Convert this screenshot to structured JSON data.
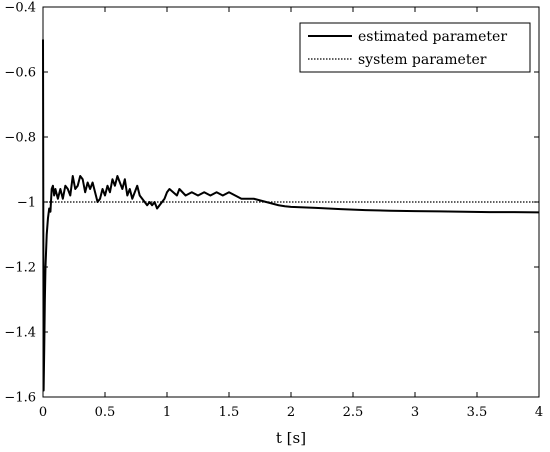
{
  "chart_data": {
    "type": "line",
    "title": "",
    "xlabel": "t [s]",
    "ylabel": "",
    "xlim": [
      0,
      4
    ],
    "ylim": [
      -1.6,
      -0.4
    ],
    "grid": false,
    "legend_position": "top-right",
    "x_ticks": [
      0,
      0.5,
      1,
      1.5,
      2,
      2.5,
      3,
      3.5,
      4
    ],
    "x_tick_labels": [
      "0",
      "0.5",
      "1",
      "1.5",
      "2",
      "2.5",
      "3",
      "3.5",
      "4"
    ],
    "y_ticks": [
      -1.6,
      -1.4,
      -1.2,
      -1,
      -0.8,
      -0.6,
      -0.4
    ],
    "y_tick_labels": [
      "−1.6",
      "−1.4",
      "−1.2",
      "−1",
      "−0.8",
      "−0.6",
      "−0.4"
    ],
    "series": [
      {
        "name": "estimated parameter",
        "style": "solid",
        "color": "#000000",
        "x": [
          0,
          0.005,
          0.01,
          0.015,
          0.02,
          0.025,
          0.03,
          0.04,
          0.05,
          0.06,
          0.07,
          0.08,
          0.09,
          0.1,
          0.12,
          0.14,
          0.16,
          0.18,
          0.2,
          0.22,
          0.24,
          0.26,
          0.28,
          0.3,
          0.32,
          0.34,
          0.36,
          0.38,
          0.4,
          0.42,
          0.44,
          0.46,
          0.48,
          0.5,
          0.52,
          0.54,
          0.56,
          0.58,
          0.6,
          0.62,
          0.64,
          0.66,
          0.68,
          0.7,
          0.72,
          0.74,
          0.76,
          0.78,
          0.8,
          0.82,
          0.84,
          0.86,
          0.88,
          0.9,
          0.92,
          0.94,
          0.96,
          0.98,
          1.0,
          1.02,
          1.05,
          1.08,
          1.1,
          1.15,
          1.2,
          1.25,
          1.3,
          1.35,
          1.4,
          1.45,
          1.5,
          1.55,
          1.6,
          1.65,
          1.7,
          1.75,
          1.8,
          1.85,
          1.9,
          1.95,
          2.0,
          2.2,
          2.4,
          2.6,
          2.8,
          3.0,
          3.2,
          3.4,
          3.6,
          3.8,
          4.0
        ],
        "y": [
          -0.5,
          -1.58,
          -1.45,
          -1.3,
          -1.2,
          -1.15,
          -1.1,
          -1.05,
          -1.02,
          -1.03,
          -0.96,
          -0.95,
          -0.98,
          -0.96,
          -0.99,
          -0.96,
          -0.99,
          -0.95,
          -0.96,
          -0.98,
          -0.92,
          -0.96,
          -0.95,
          -0.92,
          -0.93,
          -0.97,
          -0.94,
          -0.96,
          -0.94,
          -0.97,
          -1.0,
          -0.99,
          -0.96,
          -0.98,
          -0.95,
          -0.97,
          -0.93,
          -0.95,
          -0.92,
          -0.94,
          -0.96,
          -0.93,
          -0.98,
          -0.96,
          -0.99,
          -0.97,
          -0.95,
          -0.98,
          -0.99,
          -1.0,
          -1.01,
          -1.0,
          -1.01,
          -1.0,
          -1.02,
          -1.01,
          -1.0,
          -0.99,
          -0.97,
          -0.96,
          -0.97,
          -0.98,
          -0.96,
          -0.98,
          -0.97,
          -0.98,
          -0.97,
          -0.98,
          -0.97,
          -0.98,
          -0.97,
          -0.98,
          -0.99,
          -0.99,
          -0.99,
          -0.995,
          -1.0,
          -1.005,
          -1.01,
          -1.013,
          -1.015,
          -1.018,
          -1.022,
          -1.025,
          -1.027,
          -1.028,
          -1.029,
          -1.03,
          -1.031,
          -1.031,
          -1.032
        ]
      },
      {
        "name": "system parameter",
        "style": "dotted",
        "color": "#000000",
        "x": [
          0,
          4
        ],
        "y": [
          -1,
          -1
        ]
      }
    ]
  }
}
